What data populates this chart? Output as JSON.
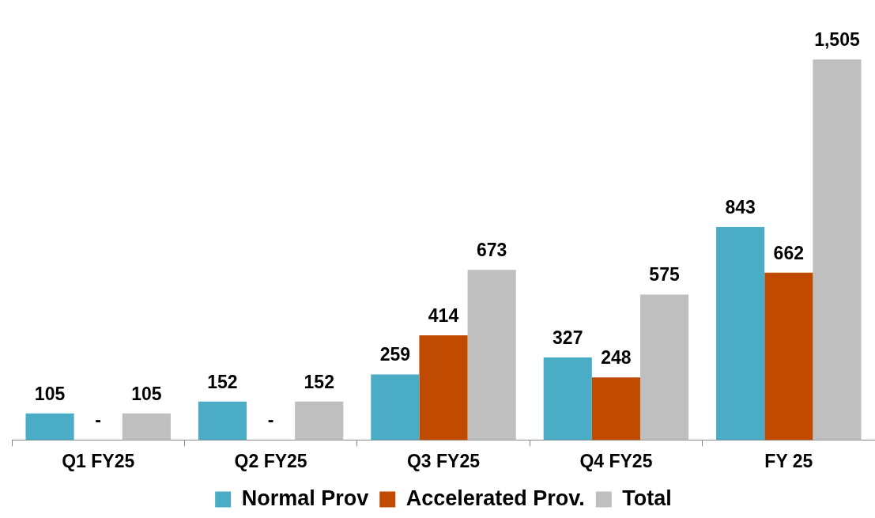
{
  "chart_data": {
    "type": "bar",
    "categories": [
      "Q1 FY25",
      "Q2 FY25",
      "Q3 FY25",
      "Q4 FY25",
      "FY 25"
    ],
    "series": [
      {
        "name": "Normal Prov",
        "color": "#4bacc6",
        "values": [
          105,
          152,
          259,
          327,
          843
        ],
        "value_labels": [
          "105",
          "152",
          "259",
          "327",
          "843"
        ]
      },
      {
        "name": "Accelerated Prov.",
        "color": "#c04b00",
        "values": [
          0,
          0,
          414,
          248,
          662
        ],
        "value_labels": [
          "-",
          "-",
          "414",
          "248",
          "662"
        ]
      },
      {
        "name": "Total",
        "color": "#bfbfbf",
        "values": [
          105,
          152,
          673,
          575,
          1505
        ],
        "value_labels": [
          "105",
          "152",
          "673",
          "575",
          "1,505"
        ]
      }
    ],
    "legend": "bottom"
  }
}
